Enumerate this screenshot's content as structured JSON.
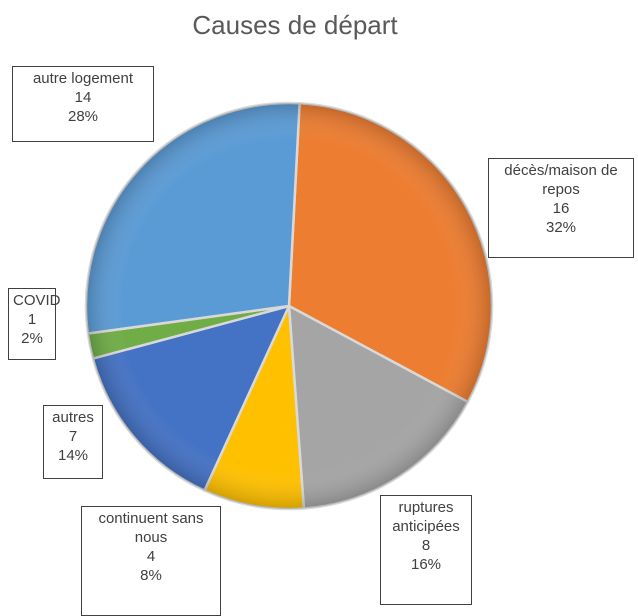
{
  "chart_data": {
    "type": "pie",
    "title": "Causes de départ",
    "start_angle_deg": 3,
    "slices": [
      {
        "label": "décès/maison de repos",
        "value": 16,
        "percent": "32%",
        "color": "#ED7D31"
      },
      {
        "label": "ruptures anticipées",
        "value": 8,
        "percent": "16%",
        "color": "#A5A5A5"
      },
      {
        "label": "continuent sans nous",
        "value": 4,
        "percent": "8%",
        "color": "#FFC000"
      },
      {
        "label": "autres",
        "value": 7,
        "percent": "14%",
        "color": "#4472C4"
      },
      {
        "label": "COVID",
        "value": 1,
        "percent": "2%",
        "color": "#70AD47"
      },
      {
        "label": "autre logement",
        "value": 14,
        "percent": "28%",
        "color": "#5B9BD5"
      }
    ]
  }
}
